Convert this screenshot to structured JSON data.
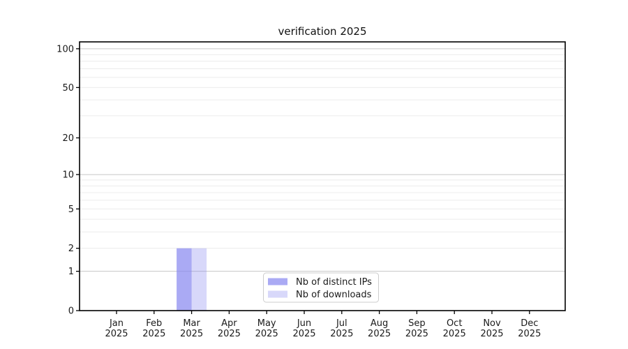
{
  "chart_data": {
    "type": "bar",
    "title": "verification 2025",
    "x": {
      "months": [
        "Jan",
        "Feb",
        "Mar",
        "Apr",
        "May",
        "Jun",
        "Jul",
        "Aug",
        "Sep",
        "Oct",
        "Nov",
        "Dec"
      ],
      "year_label": "2025"
    },
    "y_axis": {
      "scale": "log1p",
      "tick_labels": [
        0,
        1,
        2,
        5,
        10,
        20,
        50,
        100
      ],
      "major_gridlines": [
        1,
        10,
        100
      ],
      "minor_gridlines": [
        2,
        3,
        4,
        5,
        6,
        7,
        8,
        9,
        20,
        30,
        40,
        50,
        60,
        70,
        80,
        90
      ],
      "ylim": [
        0,
        113
      ]
    },
    "series": [
      {
        "name": "Nb of distinct IPs",
        "values": [
          0,
          0,
          2,
          0,
          0,
          0,
          0,
          0,
          0,
          0,
          0,
          0
        ],
        "color": "#8989f0",
        "alpha": 0.72,
        "blended_color": "#aaaaf4"
      },
      {
        "name": "Nb of downloads",
        "values": [
          0,
          0,
          2,
          0,
          0,
          0,
          0,
          0,
          0,
          0,
          0,
          0
        ],
        "color": "#8989f0",
        "alpha": 0.33,
        "blended_color": "#d9d9f9"
      }
    ],
    "legend": {
      "position": "lower center",
      "entries": [
        "Nb of distinct IPs",
        "Nb of downloads"
      ]
    },
    "grid": true,
    "colors": {
      "axis": "#000000",
      "major_grid": "#c6c6c6",
      "minor_grid": "#ececec",
      "text": "#1a1a1a",
      "legend_border": "#cccccc",
      "legend_bg": "#ffffff"
    }
  }
}
